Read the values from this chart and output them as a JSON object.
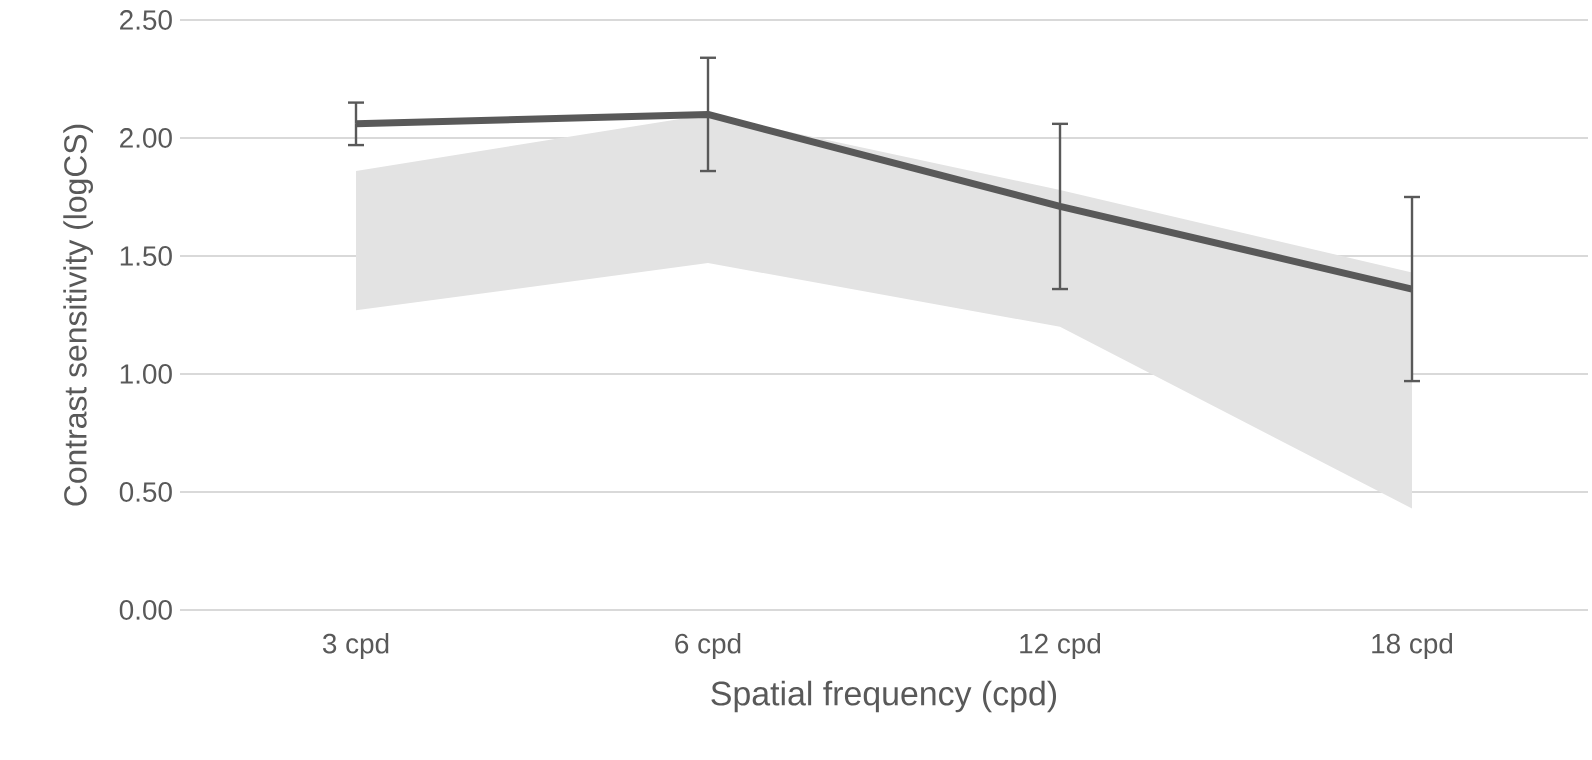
{
  "chart_data": {
    "type": "line",
    "xlabel": "Spatial frequency (cpd)",
    "ylabel": "Contrast sensitivity (logCS)",
    "categories": [
      "3 cpd",
      "6 cpd",
      "12 cpd",
      "18 cpd"
    ],
    "series": [
      {
        "color": "#595959",
        "values": [
          2.06,
          2.1,
          1.71,
          1.36
        ],
        "errors": [
          0.09,
          0.24,
          0.35,
          0.39
        ],
        "lower": [
          1.27,
          1.47,
          1.2,
          0.43
        ],
        "upper": [
          1.86,
          2.1,
          1.78,
          1.43
        ]
      }
    ],
    "ylim": [
      0,
      2.5
    ],
    "yticks": [
      {
        "value": 0,
        "label": "0.00"
      },
      {
        "value": 0.5,
        "label": "0.50"
      },
      {
        "value": 1,
        "label": "1.00"
      },
      {
        "value": 1.5,
        "label": "1.50"
      },
      {
        "value": 2,
        "label": "2.00"
      },
      {
        "value": 2.5,
        "label": "2.50"
      }
    ],
    "grid": "y"
  }
}
